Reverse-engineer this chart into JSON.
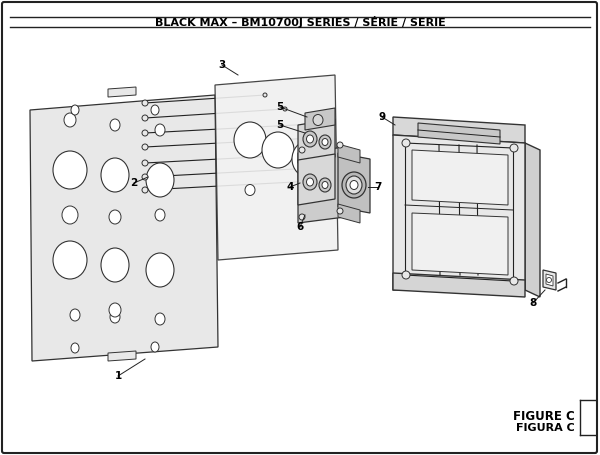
{
  "title": "BLACK MAX – BM10700J SERIES / SÉRIE / SERIE",
  "figure_label": "FIGURE C",
  "figura_label": "FIGURA C",
  "bg_color": "#ffffff",
  "border_color": "#222222",
  "line_color": "#222222",
  "part_edge": "#333333"
}
